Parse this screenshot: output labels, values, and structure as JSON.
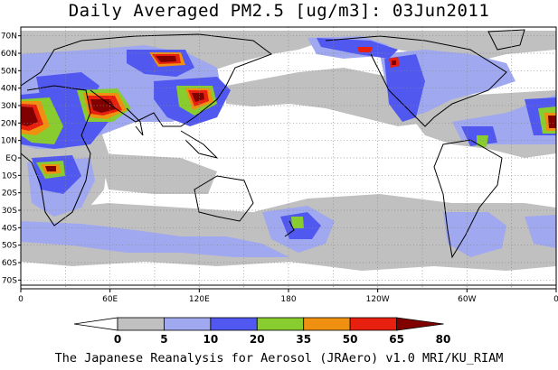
{
  "title": "Daily Averaged PM2.5 [ug/m3]: 03Jun2011",
  "credit": "The Japanese Reanalysis for Aerosol (JRAero) v1.0 MRI/KU_RIAM",
  "map": {
    "lon_range": [
      0,
      360
    ],
    "lat_range": [
      -75,
      75
    ],
    "x_ticks": [
      {
        "lon": 0,
        "label": "0"
      },
      {
        "lon": 60,
        "label": "60E"
      },
      {
        "lon": 120,
        "label": "120E"
      },
      {
        "lon": 180,
        "label": "180"
      },
      {
        "lon": 240,
        "label": "120W"
      },
      {
        "lon": 300,
        "label": "60W"
      },
      {
        "lon": 360,
        "label": "0"
      }
    ],
    "y_ticks": [
      {
        "lat": 70,
        "label": "70N"
      },
      {
        "lat": 60,
        "label": "60N"
      },
      {
        "lat": 50,
        "label": "50N"
      },
      {
        "lat": 40,
        "label": "40N"
      },
      {
        "lat": 30,
        "label": "30N"
      },
      {
        "lat": 20,
        "label": "20N"
      },
      {
        "lat": 10,
        "label": "10N"
      },
      {
        "lat": 0,
        "label": "EQ"
      },
      {
        "lat": -10,
        "label": "10S"
      },
      {
        "lat": -20,
        "label": "20S"
      },
      {
        "lat": -30,
        "label": "30S"
      },
      {
        "lat": -40,
        "label": "40S"
      },
      {
        "lat": -50,
        "label": "50S"
      },
      {
        "lat": -60,
        "label": "60S"
      },
      {
        "lat": -70,
        "label": "70S"
      }
    ],
    "grid": true,
    "grid_lon_step": 30,
    "grid_lat_step": 10
  },
  "colorbar": {
    "levels": [
      "0",
      "5",
      "10",
      "20",
      "35",
      "50",
      "65",
      "80"
    ],
    "colors": [
      "#ffffff",
      "#c0c0c0",
      "#a0a8f0",
      "#5058f0",
      "#88cc30",
      "#f09010",
      "#e82010",
      "#800000"
    ]
  },
  "colors": {
    "c1": "#c0c0c0",
    "c2": "#a0a8f0",
    "c3": "#5058f0",
    "c4": "#88cc30",
    "c5": "#f09010",
    "c6": "#e82010",
    "c7": "#800000"
  }
}
